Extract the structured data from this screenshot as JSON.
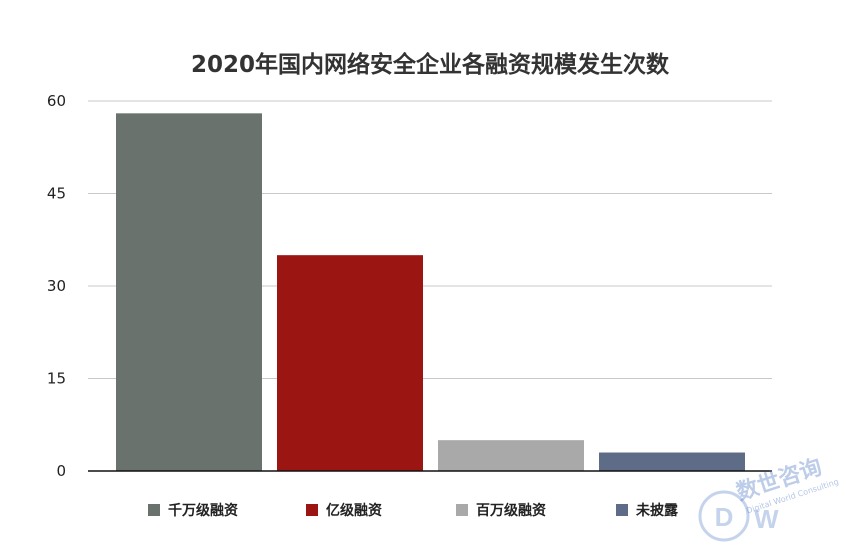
{
  "chart_data": {
    "type": "bar",
    "title": "2020年国内网络安全企业各融资规模发生次数",
    "xlabel": "",
    "ylabel": "",
    "ylim": [
      0,
      60
    ],
    "yticks": [
      "0",
      "15",
      "30",
      "45",
      "60"
    ],
    "grid": true,
    "legend_position": "bottom",
    "categories": [
      "千万级融资",
      "亿级融资",
      "百万级融资",
      "未披露"
    ],
    "values": [
      58,
      35,
      5,
      3
    ],
    "colors": [
      "#6a726e",
      "#9b1512",
      "#a9a9a9",
      "#5f6c88"
    ]
  },
  "watermark": {
    "text": "数世咨询",
    "subtext": "Digital World Consulting"
  }
}
